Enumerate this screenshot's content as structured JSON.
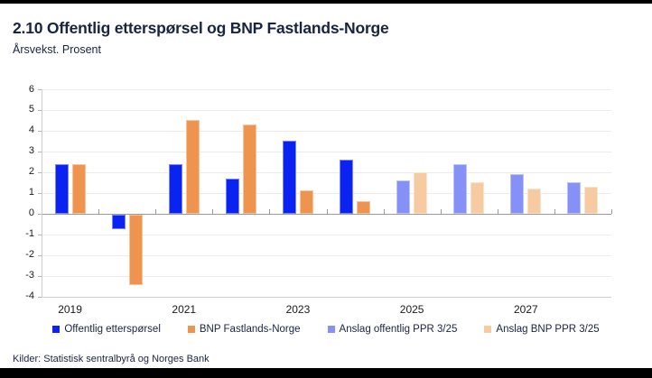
{
  "header": {
    "title": "2.10 Offentlig etterspørsel og BNP Fastlands-Norge",
    "subtitle": "Årsvekst. Prosent"
  },
  "footer": {
    "sources": "Kilder: Statistisk sentralbyrå og Norges Bank"
  },
  "chart_data": {
    "type": "bar",
    "title": "2.10 Offentlig etterspørsel og BNP Fastlands-Norge",
    "subtitle": "Årsvekst. Prosent",
    "categories": [
      "2019",
      "2020",
      "2021",
      "2022",
      "2023",
      "2024",
      "2025",
      "2026",
      "2027",
      "2028"
    ],
    "x_tick_labels": [
      "2019",
      "2021",
      "2023",
      "2025",
      "2027"
    ],
    "y_ticks": [
      6,
      5,
      4,
      3,
      2,
      1,
      0,
      -1,
      -2,
      -3,
      -4
    ],
    "ylim": [
      -4,
      6
    ],
    "grid": "horizontal",
    "legend_position": "bottom",
    "series": [
      {
        "name": "Offentlig etterspørsel",
        "color": "#0b23f0",
        "values": [
          2.4,
          -0.7,
          2.4,
          1.7,
          3.5,
          2.6,
          null,
          null,
          null,
          null
        ]
      },
      {
        "name": "BNP Fastlands-Norge",
        "color": "#ee944e",
        "values": [
          2.4,
          -3.4,
          4.5,
          4.3,
          1.1,
          0.6,
          null,
          null,
          null,
          null
        ]
      },
      {
        "name": "Anslag offentlig PPR 3/25",
        "color": "#8691f8",
        "values": [
          null,
          null,
          null,
          null,
          null,
          null,
          1.6,
          2.4,
          1.9,
          1.5
        ]
      },
      {
        "name": "Anslag BNP PPR 3/25",
        "color": "#f7cba1",
        "values": [
          null,
          null,
          null,
          null,
          null,
          null,
          2.0,
          1.5,
          1.2,
          1.3
        ]
      }
    ]
  }
}
